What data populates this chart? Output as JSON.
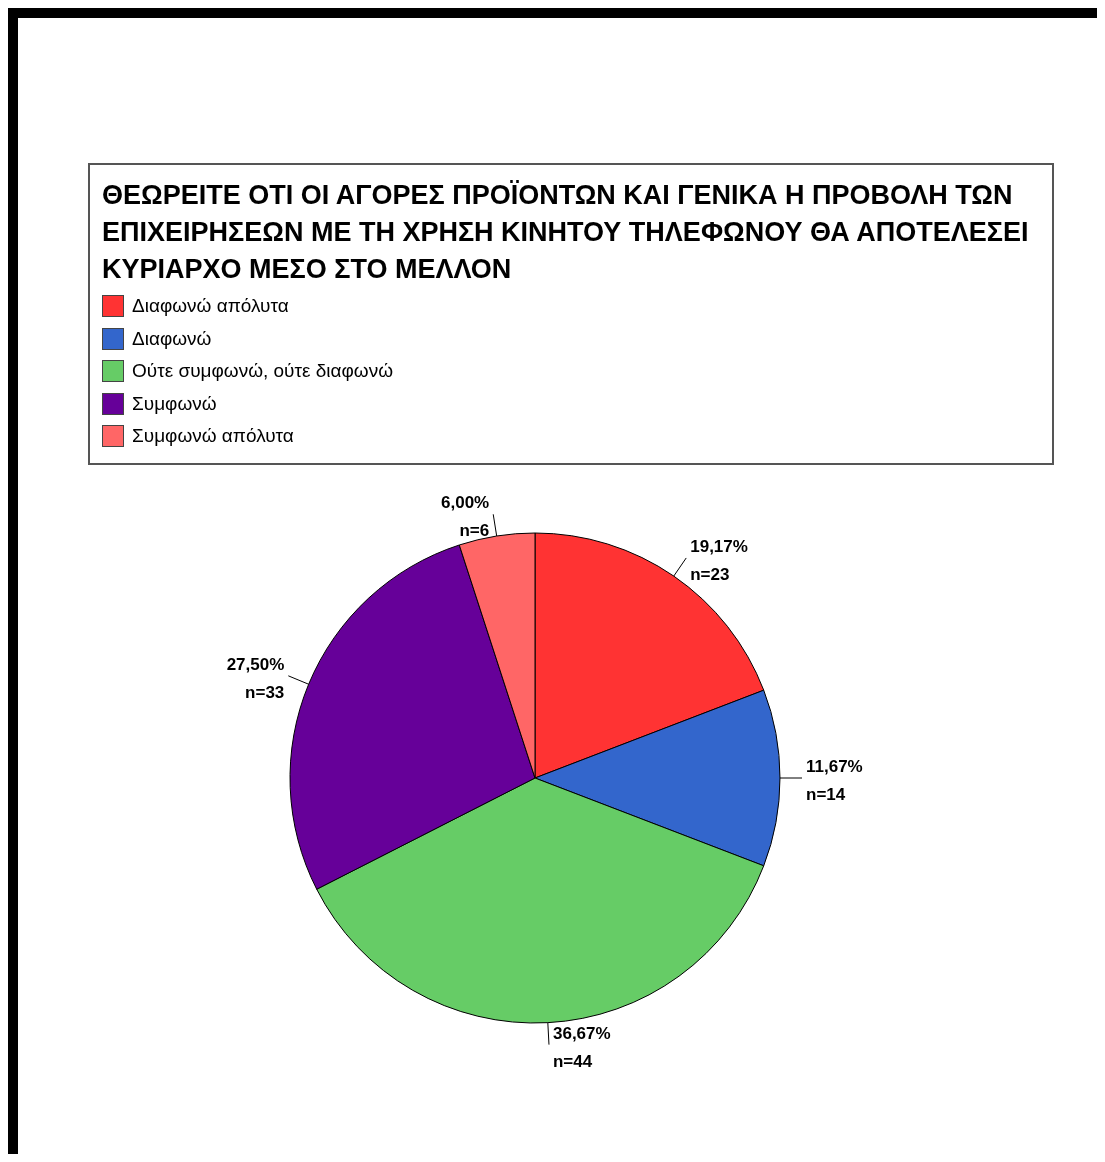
{
  "chart_data": {
    "type": "pie",
    "title": "ΘΕΩΡΕΙΤΕ ΟΤΙ ΟΙ ΑΓΟΡΕΣ ΠΡΟΪΟΝΤΩΝ ΚΑΙ ΓΕΝΙΚΑ Η ΠΡΟΒΟΛΗ ΤΩΝ ΕΠΙΧΕΙΡΗΣΕΩΝ ΜΕ ΤΗ ΧΡΗΣΗ ΚΙΝΗΤΟΥ ΤΗΛΕΦΩΝΟΥ ΘΑ ΑΠΟΤΕΛΕΣΕΙ ΚΥΡΙΑΡΧΟ ΜΕΣΟ ΣΤΟ ΜΕΛΛΟΝ",
    "categories": [
      "Διαφωνώ απόλυτα",
      "Διαφωνώ",
      "Ούτε συμφωνώ, ούτε διαφωνώ",
      "Συμφωνώ",
      "Συμφωνώ απόλυτα"
    ],
    "values": [
      23,
      14,
      44,
      33,
      6
    ],
    "colors": [
      "#ff3333",
      "#3366cc",
      "#66cc66",
      "#660099",
      "#ff6666"
    ],
    "value_labels": [
      "19,17%\nn=23",
      "11,67%\nn=14",
      "36,67%\nn=44",
      "27,50%\nn=33",
      "6,00%\nn=6"
    ],
    "legend": "top"
  }
}
